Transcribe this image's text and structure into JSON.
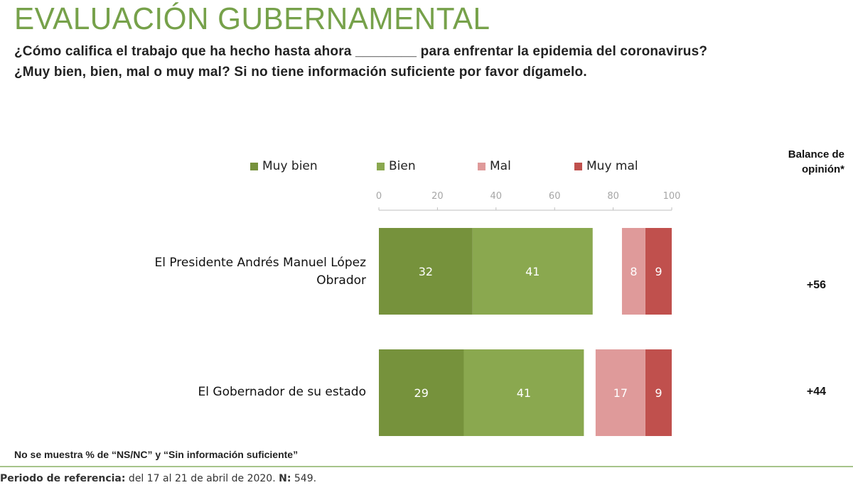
{
  "title": "EVALUACIÓN GUBERNAMENTAL",
  "question_line1": "¿Cómo califica el trabajo que ha hecho hasta ahora ________ para enfrentar la epidemia del coronavirus?",
  "question_line2": "¿Muy bien, bien, mal o muy mal? Si no tiene información suficiente por favor dígamelo.",
  "balance_header_line1": "Balance de",
  "balance_header_line2": "opinión*",
  "colors": {
    "muy_bien": "#76923c",
    "bien": "#8aa84f",
    "mal": "#df9a9a",
    "muy_mal": "#c0504d",
    "title": "#76a14a"
  },
  "chart_data": {
    "type": "bar",
    "orientation": "horizontal",
    "stacked": "diverging",
    "xlim": [
      0,
      100
    ],
    "xticks": [
      "0",
      "20",
      "40",
      "60",
      "80",
      "100"
    ],
    "legend_position": "top",
    "categories": [
      "El Presidente Andrés Manuel López Obrador",
      "El Gobernador de su estado"
    ],
    "series": [
      {
        "name": "Muy bien",
        "values": [
          32,
          29
        ]
      },
      {
        "name": "Bien",
        "values": [
          41,
          41
        ]
      },
      {
        "name": "Mal",
        "values": [
          8,
          17
        ]
      },
      {
        "name": "Muy mal",
        "values": [
          9,
          9
        ]
      }
    ],
    "balance": [
      "+56",
      "+44"
    ]
  },
  "category_labels": {
    "president_line1": "El Presidente Andrés Manuel López",
    "president_line2": "Obrador",
    "governor": "El Gobernador de su estado"
  },
  "note": "No se muestra % de “NS/NC” y “Sin información suficiente”",
  "footer": {
    "period_label": "Periodo de referencia:",
    "period_value": " del 17 al 21 de abril de 2020. ",
    "n_label": "N:",
    "n_value": " 549."
  }
}
